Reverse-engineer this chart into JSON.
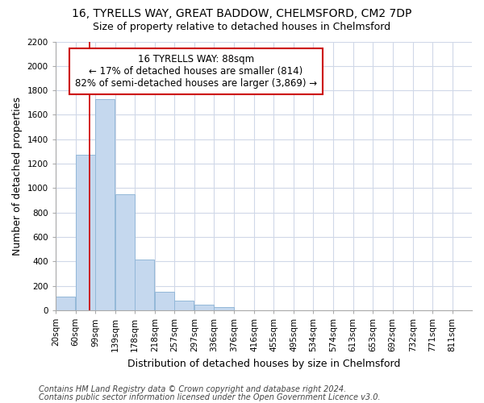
{
  "title1": "16, TYRELLS WAY, GREAT BADDOW, CHELMSFORD, CM2 7DP",
  "title2": "Size of property relative to detached houses in Chelmsford",
  "xlabel": "Distribution of detached houses by size in Chelmsford",
  "ylabel": "Number of detached properties",
  "footer1": "Contains HM Land Registry data © Crown copyright and database right 2024.",
  "footer2": "Contains public sector information licensed under the Open Government Licence v3.0.",
  "annotation_line1": "16 TYRELLS WAY: 88sqm",
  "annotation_line2": "← 17% of detached houses are smaller (814)",
  "annotation_line3": "82% of semi-detached houses are larger (3,869) →",
  "property_sqm": 88,
  "bar_left_edges": [
    20,
    60,
    99,
    139,
    178,
    218,
    257,
    297,
    336,
    376,
    416,
    455,
    495,
    534,
    574,
    613,
    653,
    692,
    732,
    771
  ],
  "bar_heights": [
    110,
    1270,
    1730,
    950,
    415,
    155,
    80,
    45,
    25,
    0,
    0,
    0,
    0,
    0,
    0,
    0,
    0,
    0,
    0,
    0
  ],
  "bin_width": 39,
  "bar_color": "#c5d8ee",
  "bar_edge_color": "#93b8d8",
  "vline_color": "#cc0000",
  "vline_x": 88,
  "annotation_box_color": "#cc0000",
  "annotation_bg": "#ffffff",
  "tick_labels": [
    "20sqm",
    "60sqm",
    "99sqm",
    "139sqm",
    "178sqm",
    "218sqm",
    "257sqm",
    "297sqm",
    "336sqm",
    "376sqm",
    "416sqm",
    "455sqm",
    "495sqm",
    "534sqm",
    "574sqm",
    "613sqm",
    "653sqm",
    "692sqm",
    "732sqm",
    "771sqm",
    "811sqm"
  ],
  "tick_positions": [
    20,
    60,
    99,
    139,
    178,
    218,
    257,
    297,
    336,
    376,
    416,
    455,
    495,
    534,
    574,
    613,
    653,
    692,
    732,
    771,
    811
  ],
  "ylim": [
    0,
    2200
  ],
  "xlim": [
    20,
    850
  ],
  "bg_color": "#ffffff",
  "plot_bg_color": "#ffffff",
  "grid_color": "#d0d8e8",
  "title1_fontsize": 10,
  "title2_fontsize": 9,
  "axis_label_fontsize": 9,
  "tick_fontsize": 7.5,
  "annotation_fontsize": 8.5,
  "footer_fontsize": 7
}
